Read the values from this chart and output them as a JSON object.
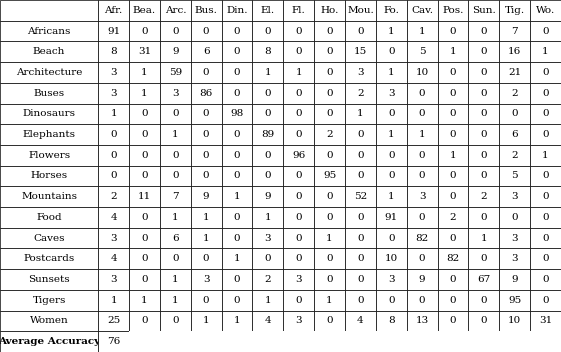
{
  "col_headers": [
    "Afr.",
    "Bea.",
    "Arc.",
    "Bus.",
    "Din.",
    "El.",
    "Fl.",
    "Ho.",
    "Mou.",
    "Fo.",
    "Cav.",
    "Pos.",
    "Sun.",
    "Tig.",
    "Wo."
  ],
  "row_headers": [
    "Africans",
    "Beach",
    "Architecture",
    "Buses",
    "Dinosaurs",
    "Elephants",
    "Flowers",
    "Horses",
    "Mountains",
    "Food",
    "Caves",
    "Postcards",
    "Sunsets",
    "Tigers",
    "Women"
  ],
  "matrix": [
    [
      91,
      0,
      0,
      0,
      0,
      0,
      0,
      0,
      0,
      1,
      1,
      0,
      0,
      7,
      0
    ],
    [
      8,
      31,
      9,
      6,
      0,
      8,
      0,
      0,
      15,
      0,
      5,
      1,
      0,
      16,
      1
    ],
    [
      3,
      1,
      59,
      0,
      0,
      1,
      1,
      0,
      3,
      1,
      10,
      0,
      0,
      21,
      0
    ],
    [
      3,
      1,
      3,
      86,
      0,
      0,
      0,
      0,
      2,
      3,
      0,
      0,
      0,
      2,
      0
    ],
    [
      1,
      0,
      0,
      0,
      98,
      0,
      0,
      0,
      1,
      0,
      0,
      0,
      0,
      0,
      0
    ],
    [
      0,
      0,
      1,
      0,
      0,
      89,
      0,
      2,
      0,
      1,
      1,
      0,
      0,
      6,
      0
    ],
    [
      0,
      0,
      0,
      0,
      0,
      0,
      96,
      0,
      0,
      0,
      0,
      1,
      0,
      2,
      1
    ],
    [
      0,
      0,
      0,
      0,
      0,
      0,
      0,
      95,
      0,
      0,
      0,
      0,
      0,
      5,
      0
    ],
    [
      2,
      11,
      7,
      9,
      1,
      9,
      0,
      0,
      52,
      1,
      3,
      0,
      2,
      3,
      0
    ],
    [
      4,
      0,
      1,
      1,
      0,
      1,
      0,
      0,
      0,
      91,
      0,
      2,
      0,
      0,
      0
    ],
    [
      3,
      0,
      6,
      1,
      0,
      3,
      0,
      1,
      0,
      0,
      82,
      0,
      1,
      3,
      0
    ],
    [
      4,
      0,
      0,
      0,
      1,
      0,
      0,
      0,
      0,
      10,
      0,
      82,
      0,
      3,
      0
    ],
    [
      3,
      0,
      1,
      3,
      0,
      2,
      3,
      0,
      0,
      3,
      9,
      0,
      67,
      9,
      0
    ],
    [
      1,
      1,
      1,
      0,
      0,
      1,
      0,
      1,
      0,
      0,
      0,
      0,
      0,
      95,
      0
    ],
    [
      25,
      0,
      0,
      1,
      1,
      4,
      3,
      0,
      4,
      8,
      13,
      0,
      0,
      10,
      31
    ]
  ],
  "avg_accuracy_value": "76",
  "background_color": "#ffffff",
  "cell_text_color": "#000000",
  "avg_accuracy_label": "Average Accuracy",
  "font_size": 7.5
}
